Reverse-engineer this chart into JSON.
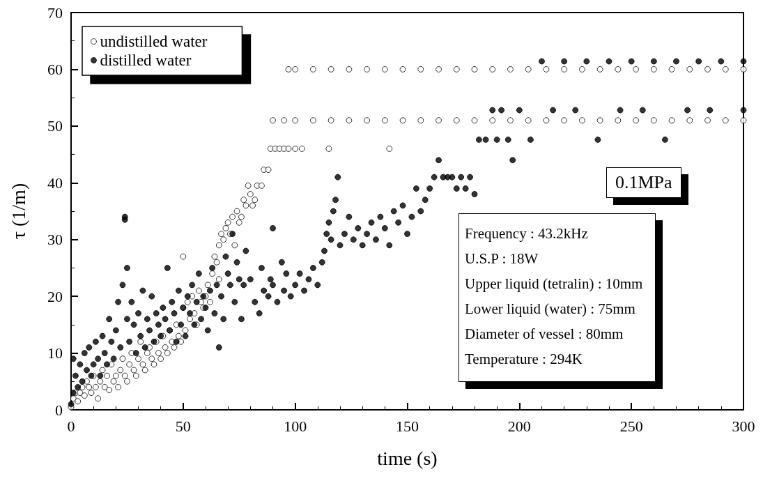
{
  "chart_data": {
    "type": "scatter",
    "xlabel": "time (s)",
    "ylabel": "τ (1/m)",
    "xlim": [
      0,
      300
    ],
    "xticks": [
      0,
      50,
      100,
      150,
      200,
      250,
      300
    ],
    "ylim": [
      0,
      70
    ],
    "yticks": [
      0,
      10,
      20,
      30,
      40,
      50,
      60,
      70
    ],
    "grid": false,
    "legend": "top left",
    "marker": "circle",
    "annotations": [
      "0.1MPa",
      "Frequency : 43.2kHz",
      "U.S.P : 18W",
      "Upper liquid (tetralin) : 10mm",
      "Lower liquid (water) : 75mm",
      "Diameter of vessel : 80mm",
      "Temperature : 294K"
    ],
    "series": [
      {
        "name": "undistilled water",
        "color": "#ffffff",
        "x": [
          0,
          1,
          2,
          3,
          4,
          5,
          6,
          7,
          8,
          9,
          10,
          11,
          12,
          13,
          14,
          15,
          16,
          17,
          18,
          19,
          20,
          21,
          22,
          23,
          24,
          25,
          26,
          27,
          28,
          29,
          30,
          31,
          32,
          33,
          34,
          35,
          36,
          37,
          38,
          39,
          40,
          41,
          42,
          43,
          44,
          45,
          46,
          47,
          48,
          49,
          50,
          50,
          51,
          52,
          53,
          54,
          55,
          56,
          57,
          58,
          59,
          60,
          61,
          62,
          63,
          64,
          65,
          66,
          66,
          67,
          68,
          69,
          70,
          71,
          72,
          73,
          74,
          75,
          76,
          77,
          78,
          79,
          80,
          81,
          82,
          83,
          85,
          86,
          88,
          89,
          91,
          93,
          95,
          97,
          100,
          103,
          115,
          142,
          90,
          95,
          100,
          108,
          116,
          124,
          132,
          140,
          148,
          156,
          164,
          172,
          180,
          188,
          196,
          204,
          212,
          220,
          228,
          236,
          244,
          252,
          260,
          268,
          276,
          284,
          292,
          300,
          97,
          100,
          108,
          116,
          124,
          132,
          140,
          148,
          156,
          164,
          172,
          180,
          188,
          196,
          204,
          212,
          220,
          228,
          236,
          244,
          252,
          260,
          268,
          276,
          284,
          292,
          300
        ],
        "values": [
          0.5,
          2,
          3,
          1.5,
          3,
          4,
          2.5,
          5,
          4,
          3,
          6,
          4,
          2,
          5,
          7,
          4,
          6,
          3.5,
          8,
          5,
          6,
          4,
          7,
          9,
          6,
          5,
          8,
          10,
          7,
          6,
          9,
          12,
          8,
          7,
          10,
          11,
          9,
          8,
          12,
          10,
          9,
          13,
          11,
          10,
          14,
          12,
          11,
          15,
          13,
          12,
          18,
          27,
          14,
          19,
          16,
          20,
          17,
          15,
          21,
          19,
          18,
          20,
          22,
          19,
          24,
          27,
          26,
          29,
          23,
          31,
          30,
          32,
          33,
          31,
          34,
          29,
          35,
          33,
          34,
          37,
          36,
          39.5,
          38,
          36,
          37,
          39.5,
          39.5,
          42.3,
          42.3,
          46,
          46,
          46,
          46,
          46,
          46,
          46,
          46,
          46,
          51,
          51,
          51,
          51,
          51,
          51,
          51,
          51,
          51,
          51,
          51,
          51,
          51,
          51,
          51,
          51,
          51,
          51,
          51,
          51,
          51,
          51,
          51,
          51,
          51,
          51,
          51,
          51,
          60,
          60,
          60,
          60,
          60,
          60,
          60,
          60,
          60,
          60,
          60,
          60,
          60,
          60,
          60,
          60,
          60,
          60,
          60,
          60,
          60,
          60,
          60,
          60,
          60,
          60,
          60
        ]
      },
      {
        "name": "distilled water",
        "color": "#000000",
        "x": [
          0,
          1,
          1,
          2,
          3,
          4,
          5,
          6,
          7,
          8,
          9,
          10,
          11,
          12,
          13,
          14,
          15,
          16,
          17,
          18,
          19,
          20,
          21,
          22,
          23,
          24,
          24,
          25,
          25,
          26,
          27,
          28,
          29,
          30,
          31,
          32,
          33,
          34,
          35,
          36,
          37,
          38,
          39,
          40,
          41,
          42,
          43,
          44,
          45,
          46,
          47,
          48,
          49,
          50,
          51,
          52,
          53,
          54,
          55,
          56,
          57,
          58,
          59,
          60,
          61,
          62,
          63,
          64,
          65,
          66,
          67,
          68,
          69,
          70,
          71,
          72,
          73,
          74,
          75,
          76,
          77,
          78,
          80,
          82,
          84,
          85,
          86,
          88,
          89,
          90,
          90,
          92,
          94,
          95,
          96,
          98,
          100,
          102,
          104,
          106,
          108,
          110,
          112,
          113,
          114,
          115,
          116,
          117,
          118,
          119,
          120,
          122,
          124,
          126,
          128,
          130,
          132,
          134,
          136,
          138,
          140,
          142,
          144,
          146,
          148,
          150,
          152,
          154,
          156,
          158,
          160,
          162,
          164,
          166,
          168,
          170,
          172,
          174,
          176,
          178,
          180,
          182,
          185,
          188,
          190,
          192,
          195,
          197,
          200,
          205,
          210,
          215,
          220,
          225,
          230,
          235,
          240,
          245,
          250,
          255,
          260,
          265,
          270,
          275,
          280,
          285,
          290,
          300,
          300
        ],
        "values": [
          1,
          3,
          9,
          6,
          4,
          8,
          5,
          10,
          7,
          11,
          6,
          8,
          12,
          9,
          6,
          13,
          10,
          8,
          16,
          12,
          9,
          14,
          19,
          11,
          22,
          33.5,
          34,
          25,
          16,
          12,
          19,
          15,
          10,
          17,
          13,
          21,
          11,
          16,
          14,
          20,
          12,
          17,
          15,
          13,
          18,
          16,
          25,
          14,
          19,
          17,
          12,
          21,
          15,
          18,
          13,
          20,
          17,
          22,
          15,
          19,
          24,
          16,
          20,
          18,
          14,
          21,
          25,
          17,
          22,
          11,
          20,
          16,
          27,
          24,
          22,
          31,
          19,
          26,
          23,
          16,
          22,
          28,
          23,
          19,
          17,
          25,
          21,
          20,
          23,
          32,
          22,
          19,
          26,
          21,
          24,
          20,
          22,
          24,
          21,
          23,
          25,
          22,
          26,
          28,
          31,
          33,
          30,
          35,
          37,
          41,
          29,
          31,
          34,
          30,
          32,
          29,
          31,
          33,
          30,
          34,
          32,
          29,
          35,
          33,
          36,
          31,
          34,
          39,
          35,
          37,
          39,
          41,
          44,
          41,
          41,
          41,
          39,
          41,
          39,
          41,
          38,
          47.6,
          47.6,
          52.8,
          47.6,
          52.8,
          47.6,
          44,
          52.8,
          47.6,
          61.4,
          52.8,
          61.4,
          52.8,
          61.4,
          47.6,
          61.4,
          52.8,
          61.4,
          52.8,
          61.4,
          47.6,
          61.4,
          52.8,
          61.4,
          52.8,
          61.4,
          52.8,
          61.4
        ]
      }
    ]
  }
}
